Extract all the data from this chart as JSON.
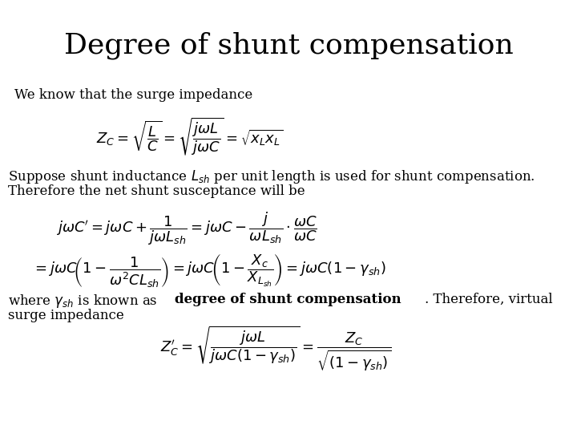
{
  "title": "Degree of shunt compensation",
  "background_color": "#ffffff",
  "text_color": "#000000",
  "title_fontsize": 26,
  "body_fontsize": 12,
  "math_fontsize": 13,
  "line1": "We know that the surge impedance",
  "line2a": "Suppose shunt inductance $L_{sh}$ per unit length is used for shunt compensation.",
  "line2b": "Therefore the net shunt susceptance will be",
  "line3a_pre": "where $\\gamma_{sh}$ is known as ",
  "line3a_bold": "degree of shunt compensation",
  "line3a_post": ". Therefore, virtual",
  "line3b": "surge impedance"
}
